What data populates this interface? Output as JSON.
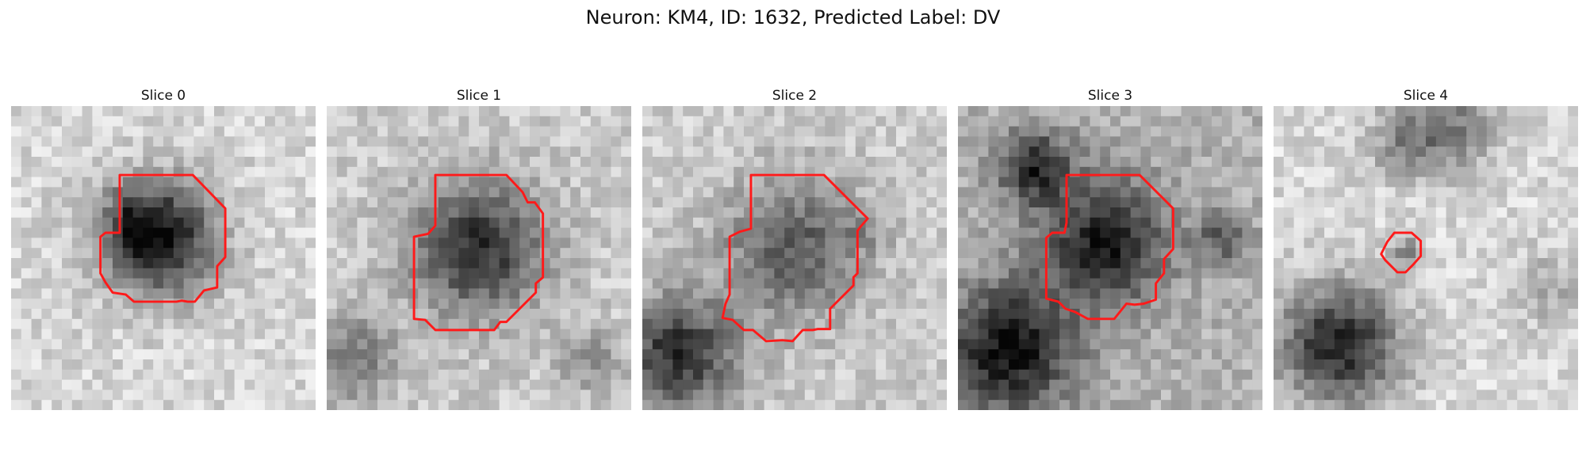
{
  "figure": {
    "title": "Neuron: KM4, ID: 1632, Predicted Label: DV"
  },
  "colors": {
    "contour": "#ff1a1a",
    "colormap": "gray"
  },
  "panels": [
    {
      "title": "Slice 0"
    },
    {
      "title": "Slice 1"
    },
    {
      "title": "Slice 2"
    },
    {
      "title": "Slice 3"
    },
    {
      "title": "Slice 4"
    }
  ]
}
